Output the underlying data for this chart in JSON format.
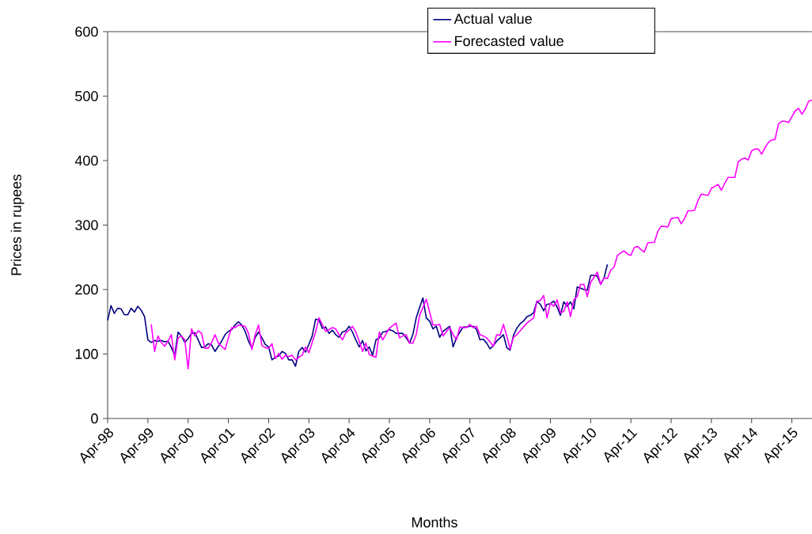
{
  "chart_data": {
    "type": "line",
    "xlabel": "Months",
    "ylabel": "Prices in rupees",
    "categories": [
      "Apr-98",
      null,
      null,
      null,
      null,
      null,
      null,
      null,
      null,
      null,
      null,
      null,
      "Apr-99",
      null,
      null,
      null,
      null,
      null,
      null,
      null,
      null,
      null,
      null,
      null,
      "Apr-00",
      null,
      null,
      null,
      null,
      null,
      null,
      null,
      null,
      null,
      null,
      null,
      "Apr-01",
      null,
      null,
      null,
      null,
      null,
      null,
      null,
      null,
      null,
      null,
      null,
      "Apr-02",
      null,
      null,
      null,
      null,
      null,
      null,
      null,
      null,
      null,
      null,
      null,
      "Apr-03",
      null,
      null,
      null,
      null,
      null,
      null,
      null,
      null,
      null,
      null,
      null,
      "Apr-04",
      null,
      null,
      null,
      null,
      null,
      null,
      null,
      null,
      null,
      null,
      null,
      "Apr-05",
      null,
      null,
      null,
      null,
      null,
      null,
      null,
      null,
      null,
      null,
      null,
      "Apr-06",
      null,
      null,
      null,
      null,
      null,
      null,
      null,
      null,
      null,
      null,
      null,
      "Apr-07",
      null,
      null,
      null,
      null,
      null,
      null,
      null,
      null,
      null,
      null,
      null,
      "Apr-08",
      null,
      null,
      null,
      null,
      null,
      null,
      null,
      null,
      null,
      null,
      null,
      "Apr-09",
      null,
      null,
      null,
      null,
      null,
      null,
      null,
      null,
      null,
      null,
      null,
      "Apr-10",
      null,
      null,
      null,
      null,
      null,
      null,
      null,
      null,
      null,
      null,
      null,
      "Apr-11",
      null,
      null,
      null,
      null,
      null,
      null,
      null,
      null,
      null,
      null,
      null,
      "Apr-12",
      null,
      null,
      null,
      null,
      null,
      null,
      null,
      null,
      null,
      null,
      null,
      "Apr-13",
      null,
      null,
      null,
      null,
      null,
      null,
      null,
      null,
      null,
      null,
      null,
      "Apr-14",
      null,
      null,
      null,
      null,
      null,
      null,
      null,
      null,
      null,
      null,
      null,
      "Apr-15",
      null,
      null,
      null,
      null,
      null,
      null
    ],
    "series": [
      {
        "name": "Actual value",
        "color": "#000080",
        "values": [
          152,
          175,
          163,
          171,
          170,
          161,
          161,
          171,
          165,
          174,
          168,
          158,
          122,
          118,
          121,
          120,
          121,
          119,
          120,
          110,
          98,
          134,
          128,
          118,
          124,
          132,
          133,
          122,
          110,
          111,
          116,
          114,
          104,
          112,
          120,
          130,
          135,
          138,
          145,
          150,
          145,
          135,
          120,
          109,
          126,
          134,
          125,
          115,
          111,
          91,
          95,
          97,
          104,
          101,
          91,
          91,
          81,
          104,
          110,
          103,
          115,
          128,
          154,
          153,
          140,
          142,
          132,
          137,
          130,
          126,
          134,
          136,
          143,
          134,
          122,
          111,
          121,
          105,
          111,
          98,
          122,
          125,
          134,
          135,
          138,
          136,
          132,
          132,
          132,
          125,
          117,
          130,
          156,
          172,
          187,
          156,
          151,
          139,
          143,
          126,
          135,
          139,
          143,
          111,
          125,
          134,
          142,
          142,
          143,
          143,
          138,
          122,
          123,
          117,
          108,
          113,
          120,
          125,
          130,
          110,
          106,
          129,
          140,
          147,
          151,
          158,
          160,
          164,
          182,
          177,
          167,
          177,
          178,
          182,
          173,
          160,
          181,
          174,
          181,
          170,
          204,
          202,
          200,
          199,
          222,
          222,
          221,
          208,
          218,
          239,
          null,
          null,
          null,
          null,
          null,
          null,
          null,
          null,
          null,
          null,
          null,
          null,
          null,
          null,
          null,
          null,
          null,
          null,
          null,
          null,
          null,
          null,
          null,
          null,
          null,
          null,
          null,
          null,
          null,
          null,
          null,
          null,
          null,
          null,
          null,
          null,
          null,
          null,
          null,
          null,
          null,
          null,
          null,
          null,
          null,
          null,
          null,
          null,
          null,
          null,
          null,
          null,
          null,
          null,
          null,
          null,
          null,
          null,
          null,
          null,
          null
        ]
      },
      {
        "name": "Forecasted value",
        "color": "#ff00ff",
        "values": [
          null,
          null,
          null,
          null,
          null,
          null,
          null,
          null,
          null,
          null,
          null,
          null,
          null,
          146,
          104,
          128,
          118,
          112,
          120,
          130,
          91,
          125,
          128,
          122,
          77,
          139,
          128,
          136,
          132,
          109,
          109,
          118,
          130,
          117,
          112,
          107,
          125,
          141,
          141,
          145,
          144,
          143,
          132,
          107,
          130,
          145,
          113,
          110,
          109,
          116,
          93,
          101,
          92,
          98,
          96,
          98,
          91,
          95,
          98,
          111,
          102,
          118,
          134,
          156,
          146,
          135,
          138,
          141,
          139,
          130,
          122,
          133,
          137,
          143,
          134,
          120,
          104,
          117,
          99,
          97,
          95,
          134,
          122,
          131,
          140,
          144,
          148,
          125,
          128,
          130,
          117,
          117,
          130,
          160,
          172,
          185,
          165,
          145,
          145,
          146,
          128,
          135,
          141,
          130,
          122,
          142,
          141,
          141,
          146,
          141,
          143,
          130,
          128,
          125,
          119,
          112,
          130,
          129,
          146,
          128,
          108,
          126,
          130,
          136,
          142,
          148,
          152,
          156,
          182,
          183,
          191,
          156,
          179,
          174,
          184,
          164,
          166,
          181,
          158,
          184,
          189,
          208,
          208,
          189,
          211,
          219,
          227,
          208,
          218,
          217,
          230,
          235,
          253,
          257,
          260,
          255,
          253,
          265,
          267,
          262,
          258,
          272,
          273,
          273,
          290,
          298,
          298,
          297,
          310,
          311,
          312,
          302,
          310,
          322,
          322,
          323,
          338,
          348,
          347,
          346,
          357,
          360,
          363,
          354,
          365,
          374,
          374,
          374,
          398,
          402,
          404,
          401,
          415,
          418,
          418,
          410,
          420,
          428,
          432,
          433,
          457,
          461,
          461,
          459,
          468,
          477,
          481,
          472,
          480,
          492,
          494
        ]
      }
    ],
    "ylim": [
      0,
      600
    ],
    "yticks": [
      0,
      100,
      200,
      300,
      400,
      500,
      600
    ],
    "legend": "top",
    "line_style": "solid"
  }
}
